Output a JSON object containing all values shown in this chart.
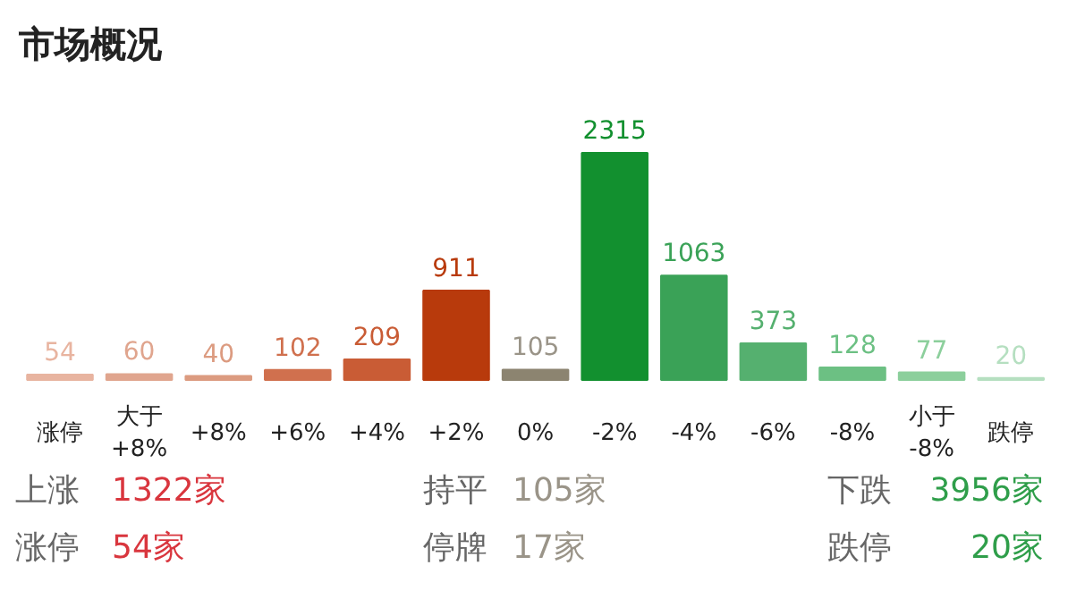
{
  "chart_data": {
    "type": "bar",
    "title": "市场概况",
    "categories": [
      "涨停",
      "大于\n+8%",
      "+8%",
      "+6%",
      "+4%",
      "+2%",
      "0%",
      "-2%",
      "-4%",
      "-6%",
      "-8%",
      "小于\n-8%",
      "跌停"
    ],
    "values": [
      54,
      60,
      40,
      102,
      209,
      911,
      105,
      2315,
      1063,
      373,
      128,
      77,
      20
    ],
    "colors": [
      "#e8b4a0",
      "#e0a58e",
      "#dc9b80",
      "#d0704e",
      "#c95c35",
      "#b83a0c",
      "#8c8470",
      "#12902f",
      "#3aa257",
      "#55b06f",
      "#6cc083",
      "#8ccf9c",
      "#b5dfc0"
    ],
    "data_labels": true,
    "annotations": [
      "上涨",
      "1322家",
      "持平",
      "105家",
      "下跌",
      "3956家",
      "涨停",
      "54家",
      "停牌",
      "17家",
      "跌停",
      "20家"
    ]
  }
}
